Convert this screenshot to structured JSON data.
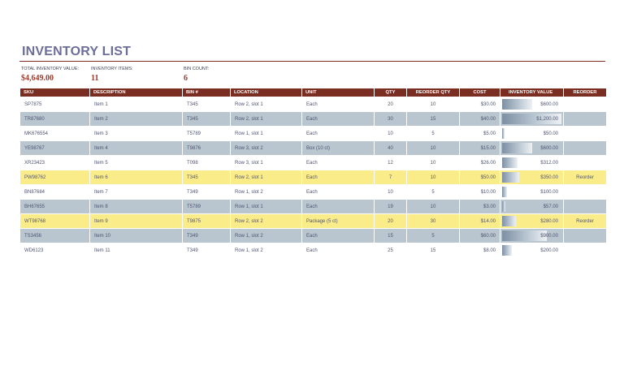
{
  "title": "INVENTORY LIST",
  "summary": {
    "total_value_label": "TOTAL INVENTORY VALUE:",
    "total_value": "$4,649.00",
    "items_label": "INVENTORY ITEMS:",
    "items": "11",
    "bin_label": "BIN COUNT:",
    "bin": "6"
  },
  "columns": [
    "SKU",
    "DESCRIPTION",
    "BIN #",
    "LOCATION",
    "UNIT",
    "QTY",
    "REORDER QTY",
    "COST",
    "INVENTORY VALUE",
    "REORDER"
  ],
  "rows": [
    {
      "sku": "SP7875",
      "desc": "Item 1",
      "bin": "T345",
      "loc": "Row 2, slot 1",
      "unit": "Each",
      "qty": "20",
      "rqty": "10",
      "cost": "$30.00",
      "value": "$600.00",
      "value_frac": 0.5,
      "reorder": "",
      "style": "white"
    },
    {
      "sku": "TR87680",
      "desc": "Item 2",
      "bin": "T345",
      "loc": "Row 2, slot 1",
      "unit": "Each",
      "qty": "30",
      "rqty": "15",
      "cost": "$40.00",
      "value": "$1,200.00",
      "value_frac": 1.0,
      "reorder": "",
      "style": "gray"
    },
    {
      "sku": "MK676554",
      "desc": "Item 3",
      "bin": "T5789",
      "loc": "Row 1, slot 1",
      "unit": "Each",
      "qty": "10",
      "rqty": "5",
      "cost": "$5.00",
      "value": "$50.00",
      "value_frac": 0.04,
      "reorder": "",
      "style": "white"
    },
    {
      "sku": "YE98767",
      "desc": "Item 4",
      "bin": "T9876",
      "loc": "Row 3, slot 2",
      "unit": "Box (10 ct)",
      "qty": "40",
      "rqty": "10",
      "cost": "$15.00",
      "value": "$600.00",
      "value_frac": 0.5,
      "reorder": "",
      "style": "gray"
    },
    {
      "sku": "XR23423",
      "desc": "Item 5",
      "bin": "T098",
      "loc": "Row 3, slot 1",
      "unit": "Each",
      "qty": "12",
      "rqty": "10",
      "cost": "$26.00",
      "value": "$312.00",
      "value_frac": 0.26,
      "reorder": "",
      "style": "white"
    },
    {
      "sku": "PW98762",
      "desc": "Item 6",
      "bin": "T345",
      "loc": "Row 2, slot 1",
      "unit": "Each",
      "qty": "7",
      "rqty": "10",
      "cost": "$50.00",
      "value": "$350.00",
      "value_frac": 0.29,
      "reorder": "Reorder",
      "style": "yellow"
    },
    {
      "sku": "BN87684",
      "desc": "Item 7",
      "bin": "T349",
      "loc": "Row 1, slot 2",
      "unit": "Each",
      "qty": "10",
      "rqty": "5",
      "cost": "$10.00",
      "value": "$100.00",
      "value_frac": 0.08,
      "reorder": "",
      "style": "white"
    },
    {
      "sku": "BH67655",
      "desc": "Item 8",
      "bin": "T5789",
      "loc": "Row 1, slot 1",
      "unit": "Each",
      "qty": "19",
      "rqty": "10",
      "cost": "$3.00",
      "value": "$57.00",
      "value_frac": 0.05,
      "reorder": "",
      "style": "gray"
    },
    {
      "sku": "WT98768",
      "desc": "Item 9",
      "bin": "T9875",
      "loc": "Row 2, slot 2",
      "unit": "Package (5 ct)",
      "qty": "20",
      "rqty": "30",
      "cost": "$14.00",
      "value": "$280.00",
      "value_frac": 0.23,
      "reorder": "Reorder",
      "style": "yellow"
    },
    {
      "sku": "TS3456",
      "desc": "Item 10",
      "bin": "T349",
      "loc": "Row 1, slot 2",
      "unit": "Each",
      "qty": "15",
      "rqty": "5",
      "cost": "$60.00",
      "value": "$900.00",
      "value_frac": 0.75,
      "reorder": "",
      "style": "gray"
    },
    {
      "sku": "WD6123",
      "desc": "Item 11",
      "bin": "T349",
      "loc": "Row 1, slot 2",
      "unit": "Each",
      "qty": "25",
      "rqty": "15",
      "cost": "$8.00",
      "value": "$200.00",
      "value_frac": 0.17,
      "reorder": "",
      "style": "white"
    }
  ]
}
